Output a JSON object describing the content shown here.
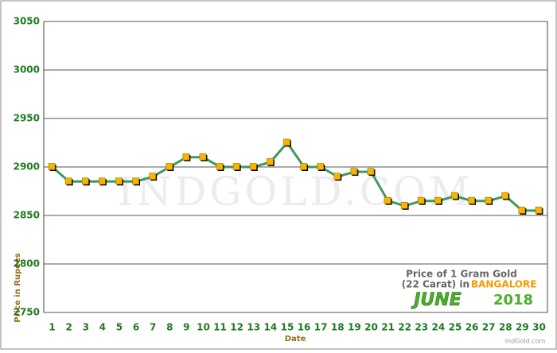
{
  "chart_data": {
    "type": "line",
    "categories": [
      "1",
      "2",
      "3",
      "4",
      "5",
      "6",
      "7",
      "8",
      "9",
      "10",
      "11",
      "12",
      "13",
      "14",
      "15",
      "16",
      "17",
      "18",
      "19",
      "20",
      "21",
      "22",
      "23",
      "24",
      "25",
      "26",
      "27",
      "28",
      "29",
      "30"
    ],
    "series": [
      {
        "name": "Price of 1 Gram Gold",
        "color": "#3c9a5f",
        "marker_color": "#f7b500",
        "values": [
          2900,
          2885,
          2885,
          2885,
          2885,
          2885,
          2890,
          2900,
          2910,
          2910,
          2900,
          2900,
          2900,
          2905,
          2925,
          2900,
          2900,
          2890,
          2895,
          2895,
          2865,
          2860,
          2865,
          2865,
          2870,
          2865,
          2865,
          2870,
          2855,
          2855
        ]
      }
    ],
    "ylim": [
      2750,
      3050
    ],
    "yticks": [
      2750,
      2800,
      2850,
      2900,
      2950,
      3000,
      3050
    ],
    "grid": true,
    "ylabel": "Price in Rupees",
    "xlabel": "Date",
    "annotation": {
      "line1": "Price of 1 Gram Gold",
      "line2": "(22 Carat) in",
      "city": "BANGALORE",
      "month": "JUNE",
      "year": "2018"
    },
    "watermark": "INDGOLD.COM",
    "credit": "IndGold.com"
  }
}
